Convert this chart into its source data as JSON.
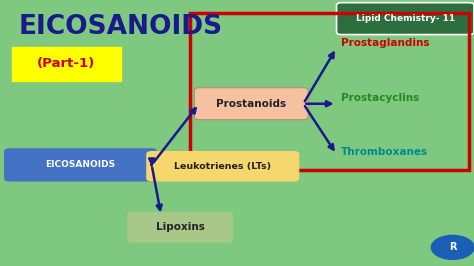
{
  "bg_color": "#7ec87f",
  "title": "EICOSANOIDS",
  "title_color": "#1a1a8c",
  "subtitle": "(Part-1)",
  "subtitle_color": "#cc0000",
  "subtitle_bg": "#ffff00",
  "header_text": "Lipid Chemistry- 11",
  "header_bg": "#2d6e3e",
  "header_text_color": "#ffffff",
  "eicosanoids_box_color": "#4472c4",
  "eicosanoids_text_color": "#ffffff",
  "prostanoids_box_color": "#f4c2a1",
  "prostanoids_border_color": "#cc0000",
  "red_border_color": "#cc0000",
  "leukotrienes_box_color": "#f5d76e",
  "lipoxins_box_color": "#a8c88a",
  "prostaglandins_color": "#cc0000",
  "prostacyclins_color": "#228b22",
  "thromboxanes_color": "#008b8b",
  "arrow_color": "#1a1a8c",
  "logo_color": "#1a5fb4"
}
